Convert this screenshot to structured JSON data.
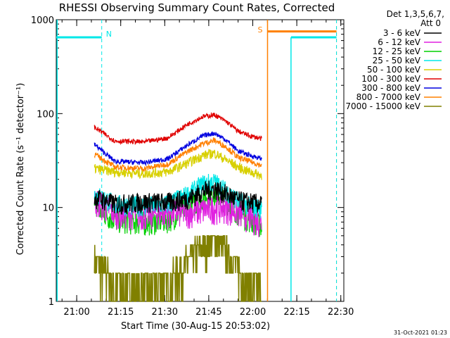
{
  "chart_data": {
    "type": "line",
    "title": "RHESSI Observing Summary Count Rates, Corrected",
    "xlabel": "Start Time (30-Aug-15 20:53:02)",
    "ylabel": "Corrected Count Rate (s⁻¹ detector⁻¹)",
    "ylog": true,
    "ylim": [
      1,
      1000
    ],
    "xlim_minutes_after_start": [
      0,
      98
    ],
    "yticks": [
      {
        "v": 1,
        "label": "1"
      },
      {
        "v": 10,
        "label": "10"
      },
      {
        "v": 100,
        "label": "100"
      },
      {
        "v": 1000,
        "label": "1000"
      }
    ],
    "xticks": [
      {
        "t": 6.97,
        "label": "21:00"
      },
      {
        "t": 21.97,
        "label": "21:15"
      },
      {
        "t": 36.97,
        "label": "21:30"
      },
      {
        "t": 51.97,
        "label": "21:45"
      },
      {
        "t": 66.97,
        "label": "22:00"
      },
      {
        "t": 81.97,
        "label": "22:15"
      },
      {
        "t": 96.97,
        "label": "22:30"
      }
    ],
    "legend_header": [
      "Det 1,3,5,6,7,",
      "Att 0"
    ],
    "legend_position": "right",
    "series": [
      {
        "name": "3 - 6 keV",
        "color": "#000000",
        "points": [
          [
            13,
            13
          ],
          [
            20,
            11
          ],
          [
            30,
            11.5
          ],
          [
            38,
            11.5
          ],
          [
            45,
            12.5
          ],
          [
            50,
            15
          ],
          [
            54,
            16
          ],
          [
            58,
            14
          ],
          [
            62,
            12
          ],
          [
            66,
            11.5
          ],
          [
            70,
            11
          ]
        ]
      },
      {
        "name": "6 - 12 keV",
        "color": "#e020e0",
        "points": [
          [
            13,
            12
          ],
          [
            20,
            9
          ],
          [
            30,
            8.5
          ],
          [
            38,
            9
          ],
          [
            45,
            9
          ],
          [
            50,
            9.5
          ],
          [
            54,
            10
          ],
          [
            58,
            10
          ],
          [
            62,
            9
          ],
          [
            66,
            8
          ],
          [
            70,
            7
          ]
        ]
      },
      {
        "name": "12 - 25 keV",
        "color": "#00d000",
        "points": [
          [
            13,
            10
          ],
          [
            20,
            7.5
          ],
          [
            30,
            7
          ],
          [
            38,
            7.5
          ],
          [
            45,
            10
          ],
          [
            50,
            13
          ],
          [
            54,
            14.5
          ],
          [
            58,
            12
          ],
          [
            62,
            9
          ],
          [
            66,
            7.5
          ],
          [
            70,
            6.5
          ]
        ]
      },
      {
        "name": "25 - 50 keV",
        "color": "#00e8e8",
        "points": [
          [
            13,
            14
          ],
          [
            20,
            11
          ],
          [
            30,
            10.5
          ],
          [
            38,
            11
          ],
          [
            45,
            14
          ],
          [
            50,
            18
          ],
          [
            54,
            19
          ],
          [
            58,
            15
          ],
          [
            62,
            12
          ],
          [
            66,
            10.5
          ],
          [
            70,
            10
          ]
        ]
      },
      {
        "name": "50 - 100 keV",
        "color": "#d8d000",
        "points": [
          [
            13,
            26
          ],
          [
            20,
            24
          ],
          [
            30,
            23
          ],
          [
            38,
            24
          ],
          [
            45,
            30
          ],
          [
            50,
            36
          ],
          [
            54,
            38
          ],
          [
            58,
            32
          ],
          [
            62,
            27
          ],
          [
            66,
            24
          ],
          [
            70,
            22
          ]
        ]
      },
      {
        "name": "100 - 300 keV",
        "color": "#e00000",
        "points": [
          [
            13,
            72
          ],
          [
            20,
            51
          ],
          [
            30,
            50
          ],
          [
            38,
            55
          ],
          [
            45,
            78
          ],
          [
            50,
            93
          ],
          [
            54,
            97
          ],
          [
            58,
            82
          ],
          [
            62,
            65
          ],
          [
            66,
            58
          ],
          [
            70,
            54
          ]
        ]
      },
      {
        "name": "300 - 800 keV",
        "color": "#0000e0",
        "points": [
          [
            13,
            47
          ],
          [
            20,
            31
          ],
          [
            30,
            30
          ],
          [
            38,
            33
          ],
          [
            45,
            47
          ],
          [
            50,
            58
          ],
          [
            54,
            62
          ],
          [
            58,
            52
          ],
          [
            62,
            40
          ],
          [
            66,
            36
          ],
          [
            70,
            33
          ]
        ]
      },
      {
        "name": "800 - 7000 keV",
        "color": "#ff8000",
        "points": [
          [
            13,
            37
          ],
          [
            20,
            27
          ],
          [
            30,
            26
          ],
          [
            38,
            29
          ],
          [
            45,
            40
          ],
          [
            50,
            48
          ],
          [
            54,
            52
          ],
          [
            58,
            44
          ],
          [
            62,
            34
          ],
          [
            66,
            31
          ],
          [
            70,
            28
          ]
        ]
      },
      {
        "name": "7000 - 15000 keV",
        "color": "#808000",
        "points": [
          [
            13,
            2.5
          ],
          [
            20,
            1.5
          ],
          [
            30,
            1.2
          ],
          [
            38,
            1.6
          ],
          [
            45,
            2.6
          ],
          [
            50,
            3.8
          ],
          [
            54,
            4.5
          ],
          [
            58,
            3.2
          ],
          [
            62,
            2.1
          ],
          [
            66,
            1.5
          ],
          [
            70,
            1.3
          ]
        ]
      }
    ],
    "markers": {
      "night_label": "N",
      "saa_label": "S",
      "attenuator_level": 650,
      "saa_level": 750
    },
    "timestamp": "31-Oct-2021 01:23"
  }
}
